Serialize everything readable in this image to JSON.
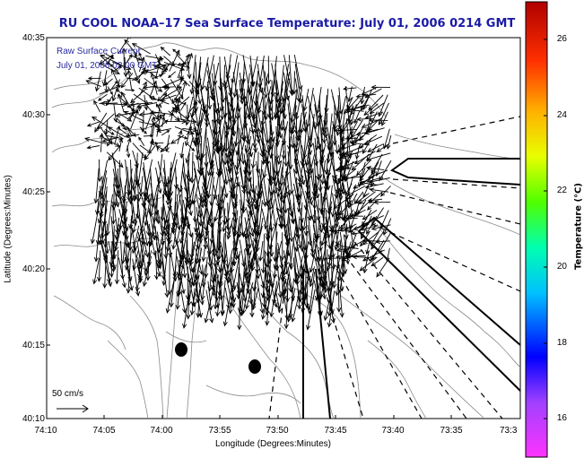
{
  "figure": {
    "title": "RU COOL  NOAA–17  Sea Surface Temperature:  July 01, 2006 0214 GMT",
    "legend_line1": "Raw Surface Current",
    "legend_line2": "July 01, 2006 02:00 GMT",
    "scale_label": "50 cm/s"
  },
  "axes": {
    "xlabel": "Longitude (Degrees:Minutes)",
    "ylabel": "Latitude (Degrees:Minutes)",
    "x_ticks": [
      "74:10",
      "74:05",
      "74:00",
      "73:55",
      "73:50",
      "73:45",
      "73:40",
      "73:35",
      "73:3"
    ],
    "y_ticks": [
      "40:35",
      "40:30",
      "40:25",
      "40:20",
      "40:15",
      "40:10"
    ]
  },
  "colorbar": {
    "label": "Temperature (°C)",
    "ticks": [
      "26",
      "24",
      "22",
      "20",
      "18",
      "16"
    ],
    "range": [
      15,
      27.2
    ]
  },
  "map": {
    "markers": [
      "station-marker-1",
      "station-marker-2"
    ]
  }
}
